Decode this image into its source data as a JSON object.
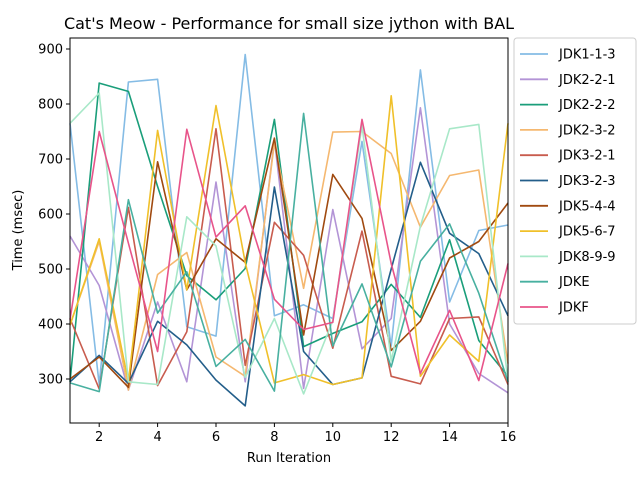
{
  "chart_data": {
    "type": "line",
    "title": "Cat's Meow - Performance for small size jython with BAL",
    "xlabel": "Run Iteration",
    "ylabel": "Time (msec)",
    "xlim": [
      1,
      16
    ],
    "ylim": [
      220,
      920
    ],
    "xticks": [
      2,
      4,
      6,
      8,
      10,
      12,
      14,
      16
    ],
    "yticks": [
      300,
      400,
      500,
      600,
      700,
      800,
      900
    ],
    "legend_position": "outside-upper-right",
    "grid": false,
    "x": [
      1,
      2,
      3,
      4,
      5,
      6,
      7,
      8,
      9,
      10,
      11,
      12,
      13,
      14,
      15,
      16
    ],
    "series": [
      {
        "name": "JDK1-1-3",
        "color": "#85bce5",
        "values": [
          765,
          290,
          840,
          845,
          395,
          378,
          890,
          415,
          435,
          410,
          732,
          360,
          862,
          440,
          570,
          580
        ]
      },
      {
        "name": "JDK2-2-1",
        "color": "#b394d6",
        "values": [
          560,
          470,
          280,
          440,
          295,
          658,
          295,
          735,
          283,
          608,
          355,
          410,
          793,
          400,
          310,
          275
        ]
      },
      {
        "name": "JDK2-2-2",
        "color": "#1a9e7a",
        "values": [
          295,
          838,
          823,
          650,
          488,
          444,
          501,
          772,
          359,
          383,
          404,
          472,
          412,
          553,
          370,
          305
        ]
      },
      {
        "name": "JDK2-3-2",
        "color": "#f5b870",
        "values": [
          398,
          550,
          280,
          490,
          530,
          340,
          305,
          730,
          465,
          749,
          750,
          710,
          576,
          670,
          680,
          328
        ]
      },
      {
        "name": "JDK3-2-1",
        "color": "#c85c4e",
        "values": [
          410,
          282,
          612,
          288,
          386,
          755,
          325,
          585,
          525,
          356,
          569,
          305,
          291,
          410,
          413,
          290
        ]
      },
      {
        "name": "JDK3-2-3",
        "color": "#235e8a",
        "values": [
          295,
          343,
          292,
          405,
          362,
          298,
          251,
          649,
          350,
          290,
          302,
          500,
          694,
          565,
          528,
          415
        ]
      },
      {
        "name": "JDK5-4-4",
        "color": "#a04a10",
        "values": [
          300,
          340,
          285,
          695,
          462,
          555,
          512,
          738,
          380,
          672,
          592,
          352,
          405,
          520,
          550,
          620
        ]
      },
      {
        "name": "JDK5-6-7",
        "color": "#f0c02a",
        "values": [
          398,
          555,
          295,
          752,
          462,
          797,
          512,
          293,
          308,
          290,
          302,
          815,
          305,
          380,
          332,
          765
        ]
      },
      {
        "name": "JDK8-9-9",
        "color": "#a8e8c8",
        "values": [
          765,
          820,
          295,
          290,
          595,
          542,
          303,
          410,
          273,
          406,
          761,
          333,
          578,
          755,
          763,
          295
        ]
      },
      {
        "name": "JDKE",
        "color": "#48b0a0",
        "values": [
          293,
          277,
          626,
          420,
          495,
          323,
          372,
          278,
          783,
          360,
          473,
          322,
          514,
          582,
          456,
          295
        ]
      },
      {
        "name": "JDKF",
        "color": "#e8548a",
        "values": [
          408,
          750,
          547,
          350,
          754,
          558,
          615,
          445,
          390,
          403,
          772,
          510,
          310,
          425,
          297,
          510
        ]
      }
    ]
  }
}
